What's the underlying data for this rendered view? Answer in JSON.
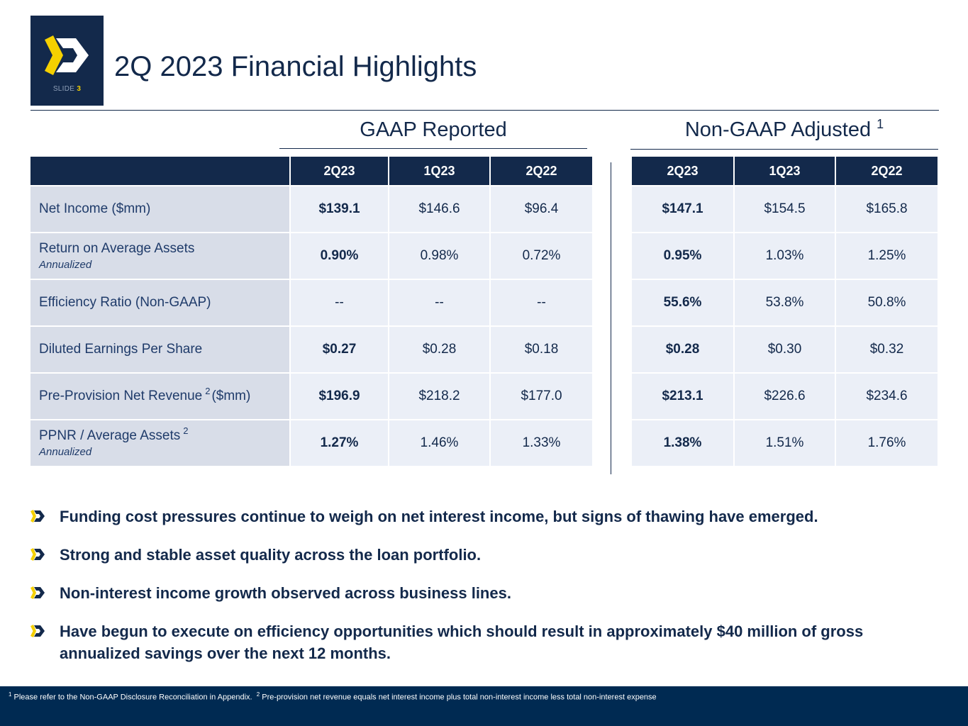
{
  "header": {
    "slide_word": "SLIDE",
    "slide_number": "3",
    "title": "2Q 2023 Financial Highlights"
  },
  "gaap": {
    "title": "GAAP Reported",
    "columns": [
      "2Q23",
      "1Q23",
      "2Q22"
    ]
  },
  "non_gaap": {
    "title": "Non-GAAP Adjusted",
    "footnote_ref": "1",
    "columns": [
      "2Q23",
      "1Q23",
      "2Q22"
    ]
  },
  "rows": [
    {
      "label": "Net Income ($mm)",
      "gaap": [
        "$139.1",
        "$146.6",
        "$96.4"
      ],
      "non_gaap": [
        "$147.1",
        "$154.5",
        "$165.8"
      ]
    },
    {
      "label": "Return on Average Assets",
      "sublabel": "Annualized",
      "gaap": [
        "0.90%",
        "0.98%",
        "0.72%"
      ],
      "non_gaap": [
        "0.95%",
        "1.03%",
        "1.25%"
      ]
    },
    {
      "label": "Efficiency Ratio (Non-GAAP)",
      "gaap": [
        "--",
        "--",
        "--"
      ],
      "non_gaap": [
        "55.6%",
        "53.8%",
        "50.8%"
      ]
    },
    {
      "label": "Diluted Earnings Per Share",
      "gaap": [
        "$0.27",
        "$0.28",
        "$0.18"
      ],
      "non_gaap": [
        "$0.28",
        "$0.30",
        "$0.32"
      ]
    },
    {
      "label": "Pre-Provision Net Revenue",
      "label_sup": "2",
      "label_suffix": "($mm)",
      "gaap": [
        "$196.9",
        "$218.2",
        "$177.0"
      ],
      "non_gaap": [
        "$213.1",
        "$226.6",
        "$234.6"
      ]
    },
    {
      "label": "PPNR / Average Assets",
      "label_sup": "2",
      "sublabel": "Annualized",
      "gaap": [
        "1.27%",
        "1.46%",
        "1.33%"
      ],
      "non_gaap": [
        "1.38%",
        "1.51%",
        "1.76%"
      ]
    }
  ],
  "bullets": [
    "Funding cost pressures continue to weigh on net interest income, but signs of thawing have emerged.",
    "Strong and stable asset quality across the loan portfolio.",
    "Non-interest income growth observed across business lines.",
    "Have begun to execute on efficiency opportunities which should result in approximately $40 million of gross annualized savings over the next 12 months."
  ],
  "footer": {
    "note1_ref": "1",
    "note1": "Please refer to the Non-GAAP Disclosure Reconciliation in Appendix.",
    "note2_ref": "2",
    "note2": "Pre-provision net revenue equals net interest income plus total non-interest income less total non-interest expense"
  },
  "colors": {
    "navy": "#13294b",
    "accent_yellow": "#f5d000",
    "label_bg": "#d8dde8",
    "cell_bg": "#ebeff7",
    "footer_bg": "#002a52"
  }
}
